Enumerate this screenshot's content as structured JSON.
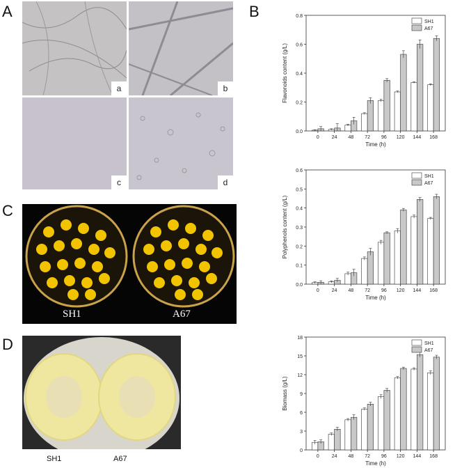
{
  "panels": {
    "A": {
      "label": "A",
      "tags": [
        "a",
        "b",
        "c",
        "d"
      ]
    },
    "B": {
      "label": "B"
    },
    "C": {
      "label": "C",
      "captions": [
        "SH1",
        "A67"
      ]
    },
    "D": {
      "label": "D",
      "captions": [
        "SH1",
        "A67"
      ]
    }
  },
  "colors": {
    "sh1_fill": "#ffffff",
    "a67_fill": "#c8c8c8",
    "bar_stroke": "#333333",
    "colony_yellow": "#f2c400",
    "mycelium_yellow": "#efe6a0"
  },
  "chart_data": [
    {
      "type": "bar",
      "categories": [
        "0",
        "24",
        "48",
        "72",
        "96",
        "120",
        "144",
        "168"
      ],
      "xlabel": "Time (h)",
      "ylabel": "Flavonoids content (g/L)",
      "ylim": [
        0,
        0.8
      ],
      "yticks": [
        "0.0",
        "0.2",
        "0.4",
        "0.6",
        "0.8"
      ],
      "legend_position": "top-right",
      "series": [
        {
          "name": "SH1",
          "values": [
            0.005,
            0.01,
            0.04,
            0.12,
            0.21,
            0.27,
            0.335,
            0.32
          ],
          "errors": [
            0.003,
            0.005,
            0.006,
            0.006,
            0.008,
            0.006,
            0.005,
            0.006
          ]
        },
        {
          "name": "A67",
          "values": [
            0.015,
            0.02,
            0.07,
            0.21,
            0.35,
            0.53,
            0.6,
            0.64
          ],
          "errors": [
            0.015,
            0.03,
            0.025,
            0.02,
            0.012,
            0.025,
            0.03,
            0.018
          ]
        }
      ]
    },
    {
      "type": "bar",
      "categories": [
        "0",
        "24",
        "48",
        "72",
        "96",
        "120",
        "144",
        "168"
      ],
      "xlabel": "Time (h)",
      "ylabel": "Polyphenols content (g/L)",
      "ylim": [
        0,
        0.6
      ],
      "yticks": [
        "0.0",
        "0.1",
        "0.2",
        "0.3",
        "0.4",
        "0.5",
        "0.6"
      ],
      "legend_position": "top-right",
      "series": [
        {
          "name": "SH1",
          "values": [
            0.008,
            0.012,
            0.055,
            0.135,
            0.22,
            0.28,
            0.355,
            0.345
          ],
          "errors": [
            0.004,
            0.005,
            0.008,
            0.008,
            0.01,
            0.012,
            0.008,
            0.006
          ]
        },
        {
          "name": "A67",
          "values": [
            0.01,
            0.02,
            0.06,
            0.17,
            0.27,
            0.39,
            0.445,
            0.46
          ],
          "errors": [
            0.008,
            0.01,
            0.018,
            0.018,
            0.005,
            0.008,
            0.01,
            0.012
          ]
        }
      ]
    },
    {
      "type": "bar",
      "categories": [
        "0",
        "24",
        "48",
        "72",
        "96",
        "120",
        "144",
        "168"
      ],
      "xlabel": "Time (h)",
      "ylabel": "Biomass (g/L)",
      "ylim": [
        0,
        18
      ],
      "yticks": [
        "0",
        "3",
        "6",
        "9",
        "12",
        "15",
        "18"
      ],
      "legend_position": "top-right",
      "series": [
        {
          "name": "SH1",
          "values": [
            1.2,
            2.5,
            4.8,
            6.5,
            8.5,
            11.5,
            12.9,
            12.3
          ],
          "errors": [
            0.3,
            0.2,
            0.2,
            0.2,
            0.3,
            0.2,
            0.2,
            0.3
          ]
        },
        {
          "name": "A67",
          "values": [
            1.3,
            3.3,
            5.2,
            7.3,
            9.5,
            13.0,
            15.2,
            14.8
          ],
          "errors": [
            0.3,
            0.3,
            0.4,
            0.3,
            0.3,
            0.2,
            0.4,
            0.3
          ]
        }
      ]
    }
  ]
}
